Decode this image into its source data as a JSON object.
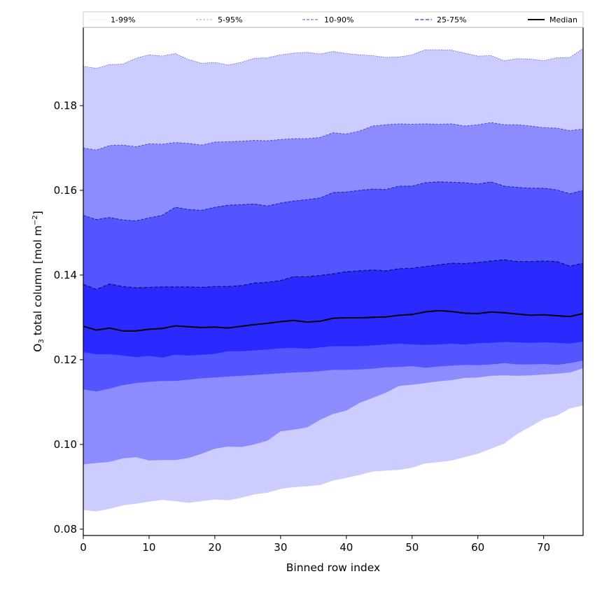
{
  "chart_data": {
    "type": "area",
    "title": "",
    "xlabel": "Binned row index",
    "ylabel_main": "O",
    "ylabel_sub": "3",
    "ylabel_rest": " total column [mol m",
    "ylabel_sup": "−2",
    "ylabel_end": "]",
    "xlim": [
      0,
      76
    ],
    "ylim": [
      0.0785,
      0.1985
    ],
    "xticks": [
      0,
      10,
      20,
      30,
      40,
      50,
      60,
      70
    ],
    "xtick_labels": [
      "0",
      "10",
      "20",
      "30",
      "40",
      "50",
      "60",
      "70"
    ],
    "yticks": [
      0.08,
      0.1,
      0.12,
      0.14,
      0.16,
      0.18
    ],
    "ytick_labels": [
      "0.08",
      "0.10",
      "0.12",
      "0.14",
      "0.16",
      "0.18"
    ],
    "grid": false,
    "legend_placement": "top, outside axes, single row",
    "legend": [
      {
        "label": "1-99%",
        "color": "#ccccff",
        "style": "dotted"
      },
      {
        "label": "5-95%",
        "color": "#a0a0f0",
        "style": "dashed"
      },
      {
        "label": "10-90%",
        "color": "#7777ee",
        "style": "dashed"
      },
      {
        "label": "25-75%",
        "color": "#5555dd",
        "style": "dashed"
      },
      {
        "label": "Median",
        "color": "#000000",
        "style": "solid"
      }
    ],
    "x_knots": [
      0,
      2,
      4,
      6,
      8,
      10,
      12,
      14,
      16,
      18,
      20,
      22,
      24,
      26,
      28,
      30,
      32,
      34,
      36,
      38,
      40,
      42,
      44,
      46,
      48,
      50,
      52,
      54,
      56,
      58,
      60,
      62,
      64,
      66,
      68,
      70,
      72,
      74,
      76
    ],
    "bands": [
      {
        "name": "1-99%",
        "fill": "#ccccff",
        "edge": "#5a5ad8",
        "upper": [
          0.1893,
          0.1888,
          0.1897,
          0.1898,
          0.1912,
          0.192,
          0.1917,
          0.1923,
          0.1909,
          0.19,
          0.1902,
          0.1896,
          0.1902,
          0.1912,
          0.1913,
          0.192,
          0.1924,
          0.1926,
          0.1922,
          0.1928,
          0.1923,
          0.192,
          0.1918,
          0.1914,
          0.1915,
          0.192,
          0.1932,
          0.1932,
          0.1931,
          0.1924,
          0.1917,
          0.1918,
          0.1906,
          0.1911,
          0.191,
          0.1906,
          0.1913,
          0.1914,
          0.1935
        ],
        "lower": [
          0.0845,
          0.0842,
          0.0848,
          0.0856,
          0.086,
          0.0865,
          0.0869,
          0.0866,
          0.0862,
          0.0866,
          0.087,
          0.0868,
          0.0874,
          0.0882,
          0.0886,
          0.0895,
          0.0899,
          0.0901,
          0.0904,
          0.0915,
          0.0921,
          0.0928,
          0.0936,
          0.0938,
          0.094,
          0.0945,
          0.0955,
          0.0958,
          0.0962,
          0.097,
          0.0978,
          0.099,
          0.1002,
          0.1025,
          0.1042,
          0.106,
          0.1068,
          0.1085,
          0.1092
        ]
      },
      {
        "name": "5-95%",
        "fill": "#8c8cff",
        "edge": "#4848c8",
        "upper": [
          0.17,
          0.1695,
          0.1706,
          0.1707,
          0.1703,
          0.171,
          0.1709,
          0.1713,
          0.1711,
          0.1707,
          0.1714,
          0.1715,
          0.1716,
          0.1718,
          0.1717,
          0.172,
          0.1722,
          0.1722,
          0.1725,
          0.1736,
          0.1733,
          0.174,
          0.1752,
          0.1755,
          0.1757,
          0.1756,
          0.1757,
          0.1756,
          0.1757,
          0.1752,
          0.1755,
          0.176,
          0.1755,
          0.1755,
          0.1752,
          0.1748,
          0.1747,
          0.1741,
          0.1745
        ],
        "lower": [
          0.0953,
          0.0956,
          0.0959,
          0.0967,
          0.097,
          0.0962,
          0.0963,
          0.0963,
          0.0968,
          0.0978,
          0.099,
          0.0995,
          0.0994,
          0.1,
          0.1009,
          0.1031,
          0.1035,
          0.104,
          0.1058,
          0.1072,
          0.108,
          0.1098,
          0.111,
          0.1122,
          0.1138,
          0.1141,
          0.1145,
          0.1149,
          0.1152,
          0.1157,
          0.1158,
          0.1162,
          0.1163,
          0.1162,
          0.1163,
          0.1165,
          0.1167,
          0.117,
          0.118
        ]
      },
      {
        "name": "10-90%",
        "fill": "#5555ff",
        "edge": "#2222a0",
        "upper": [
          0.1541,
          0.1531,
          0.1536,
          0.153,
          0.1528,
          0.1535,
          0.1541,
          0.156,
          0.1555,
          0.1553,
          0.156,
          0.1565,
          0.1566,
          0.1568,
          0.1563,
          0.157,
          0.1575,
          0.1578,
          0.1582,
          0.1595,
          0.1596,
          0.16,
          0.1603,
          0.1602,
          0.161,
          0.161,
          0.1618,
          0.162,
          0.1619,
          0.1618,
          0.1615,
          0.162,
          0.161,
          0.1607,
          0.1605,
          0.1605,
          0.1601,
          0.1592,
          0.16
        ],
        "lower": [
          0.113,
          0.1125,
          0.1132,
          0.114,
          0.1145,
          0.1148,
          0.115,
          0.115,
          0.1153,
          0.1156,
          0.1158,
          0.116,
          0.1162,
          0.1164,
          0.1166,
          0.1168,
          0.117,
          0.1171,
          0.1173,
          0.1176,
          0.1176,
          0.1177,
          0.1179,
          0.1182,
          0.1183,
          0.1185,
          0.1181,
          0.1184,
          0.1186,
          0.1188,
          0.1187,
          0.1189,
          0.1192,
          0.1189,
          0.1189,
          0.119,
          0.1188,
          0.1192,
          0.1198
        ]
      },
      {
        "name": "25-75%",
        "fill": "#2a2aff",
        "edge": "#111166",
        "upper": [
          0.1378,
          0.1366,
          0.1379,
          0.1373,
          0.137,
          0.1371,
          0.1372,
          0.1372,
          0.1372,
          0.1371,
          0.1373,
          0.1373,
          0.1375,
          0.1381,
          0.1383,
          0.1387,
          0.1396,
          0.1396,
          0.1399,
          0.1403,
          0.1408,
          0.141,
          0.1412,
          0.141,
          0.1415,
          0.1416,
          0.142,
          0.1424,
          0.1428,
          0.1427,
          0.143,
          0.1433,
          0.1436,
          0.1432,
          0.1432,
          0.1433,
          0.1432,
          0.1421,
          0.1428
        ],
        "lower": [
          0.1218,
          0.1213,
          0.1213,
          0.121,
          0.1206,
          0.1209,
          0.1205,
          0.1212,
          0.121,
          0.1212,
          0.1214,
          0.122,
          0.122,
          0.1222,
          0.1224,
          0.1227,
          0.1228,
          0.1226,
          0.1229,
          0.1232,
          0.1232,
          0.1232,
          0.1234,
          0.1236,
          0.1238,
          0.1236,
          0.1235,
          0.1236,
          0.1238,
          0.1236,
          0.1239,
          0.124,
          0.1242,
          0.1241,
          0.124,
          0.1241,
          0.124,
          0.1238,
          0.1243
        ]
      }
    ],
    "median": {
      "name": "Median",
      "color": "#000000",
      "values": [
        0.1279,
        0.127,
        0.1275,
        0.1268,
        0.1268,
        0.1272,
        0.1274,
        0.128,
        0.1278,
        0.1276,
        0.1277,
        0.1275,
        0.1279,
        0.1283,
        0.1286,
        0.129,
        0.1293,
        0.1289,
        0.1291,
        0.1298,
        0.1299,
        0.1299,
        0.13,
        0.1301,
        0.1305,
        0.1307,
        0.1313,
        0.1316,
        0.1314,
        0.131,
        0.1309,
        0.1313,
        0.1311,
        0.1308,
        0.1305,
        0.1306,
        0.1304,
        0.1302,
        0.1309
      ]
    }
  }
}
